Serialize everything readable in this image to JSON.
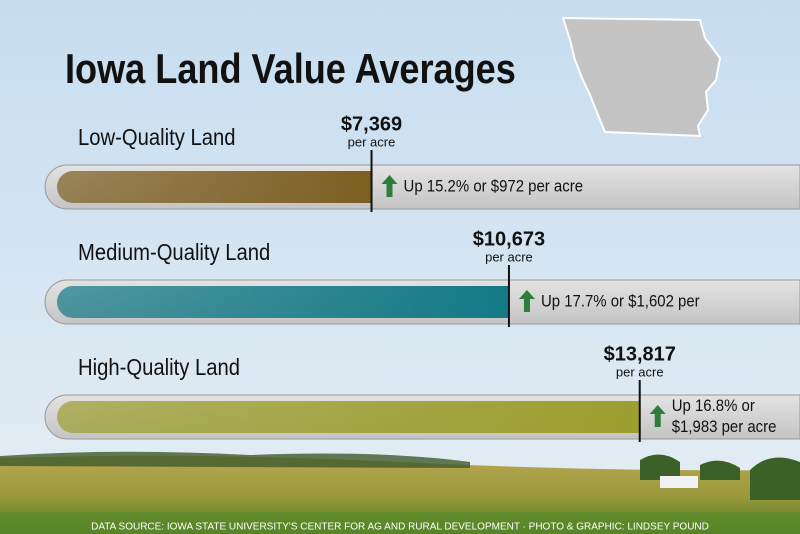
{
  "chart_data": {
    "type": "bar",
    "orientation": "horizontal",
    "title": "Iowa Land Value Averages",
    "categories": [
      "Low-Quality Land",
      "Medium-Quality Land",
      "High-Quality Land"
    ],
    "values": [
      7369,
      10673,
      13817
    ],
    "value_labels": [
      "$7,369",
      "$10,673",
      "$13,817"
    ],
    "unit_label": "per acre",
    "colors": [
      "#7d5f22",
      "#137a86",
      "#9c9e2e"
    ],
    "annotations": [
      [
        "Up 15.2% or $972 per acre"
      ],
      [
        "Up 17.7% or $1,602 per"
      ],
      [
        "Up 16.8% or",
        "$1,983 per acre"
      ]
    ],
    "xlim": [
      0,
      17670
    ],
    "source": "DATA SOURCE: IOWA STATE UNIVERSITY'S CENTER FOR AG AND RURAL DEVELOPMENT · PHOTO & GRAPHIC: LINDSEY POUND"
  }
}
